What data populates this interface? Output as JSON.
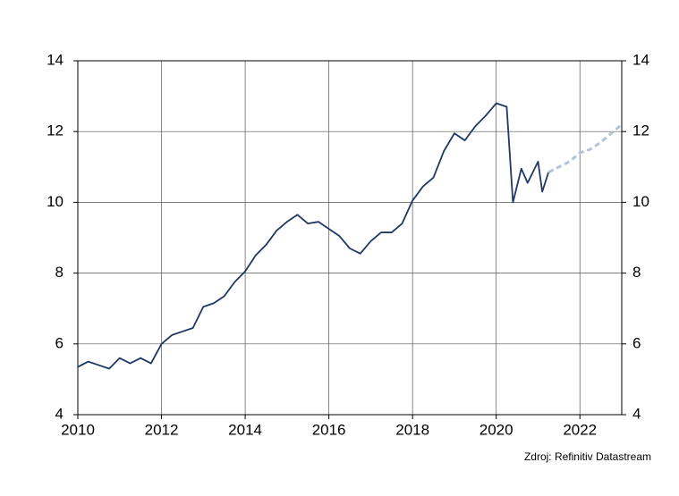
{
  "chart_data": {
    "type": "line",
    "source": "Zdroj: Refinitiv Datastream",
    "xlim": [
      2010,
      2023
    ],
    "xticks": [
      2010,
      2012,
      2014,
      2016,
      2018,
      2020,
      2022
    ],
    "ylim": [
      4,
      14
    ],
    "yticks": [
      4,
      6,
      8,
      10,
      12,
      14
    ],
    "y2lim": [
      4,
      14
    ],
    "y2ticks": [
      4,
      6,
      8,
      10,
      12,
      14
    ],
    "grid": true,
    "series": [
      {
        "color": "#1f3864",
        "style": "solid",
        "x": [
          2010.0,
          2010.25,
          2010.5,
          2010.75,
          2011.0,
          2011.25,
          2011.5,
          2011.75,
          2012.0,
          2012.25,
          2012.5,
          2012.75,
          2013.0,
          2013.25,
          2013.5,
          2013.75,
          2014.0,
          2014.25,
          2014.5,
          2014.75,
          2015.0,
          2015.25,
          2015.5,
          2015.75,
          2016.0,
          2016.25,
          2016.5,
          2016.75,
          2017.0,
          2017.25,
          2017.5,
          2017.75,
          2018.0,
          2018.25,
          2018.5,
          2018.75,
          2019.0,
          2019.25,
          2019.5,
          2019.75,
          2020.0,
          2020.25,
          2020.4,
          2020.6,
          2020.75,
          2021.0,
          2021.1,
          2021.25
        ],
        "values": [
          5.35,
          5.5,
          5.4,
          5.3,
          5.6,
          5.45,
          5.6,
          5.45,
          6.0,
          6.25,
          6.35,
          6.45,
          7.05,
          7.15,
          7.35,
          7.75,
          8.05,
          8.5,
          8.8,
          9.2,
          9.45,
          9.65,
          9.4,
          9.45,
          9.25,
          9.05,
          8.7,
          8.55,
          8.9,
          9.15,
          9.15,
          9.4,
          10.05,
          10.45,
          10.7,
          11.45,
          11.95,
          11.75,
          12.15,
          12.45,
          12.8,
          12.7,
          10.0,
          10.95,
          10.55,
          11.15,
          10.3,
          10.85
        ]
      },
      {
        "color": "#b4c3d6",
        "style": "dashed",
        "x": [
          2021.25,
          2021.5,
          2021.75,
          2022.0,
          2022.25,
          2022.5,
          2022.75,
          2023.0
        ],
        "values": [
          10.85,
          11.0,
          11.15,
          11.4,
          11.5,
          11.7,
          11.95,
          12.2
        ]
      }
    ]
  }
}
